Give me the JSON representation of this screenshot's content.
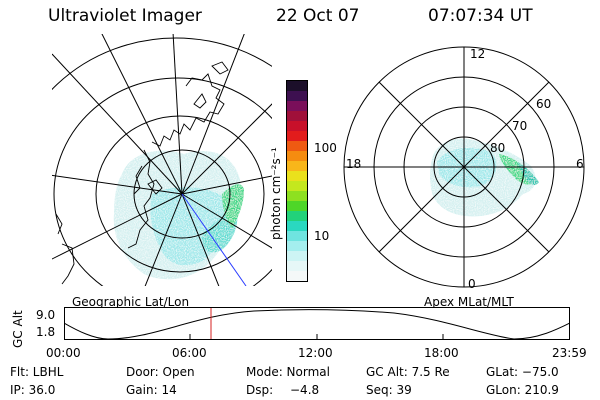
{
  "header": {
    "instrument": "Ultraviolet Imager",
    "date": "22 Oct 07",
    "time": "07:07:34 UT"
  },
  "colorbar": {
    "label": "photon cm⁻²s⁻¹",
    "ticks": [
      "100",
      "10"
    ],
    "colors": [
      "#1c0f2a",
      "#3d1050",
      "#7a0f5a",
      "#a0103a",
      "#c8102a",
      "#e21c1c",
      "#ef5a12",
      "#f58c10",
      "#f8b61a",
      "#eae11c",
      "#c4e81e",
      "#8ee020",
      "#4ed628",
      "#22d27a",
      "#2ad8c0",
      "#6fe4e0",
      "#a4eeee",
      "#cdf4f4",
      "#e6f7f7",
      "#f4f8f8"
    ]
  },
  "polar_plot": {
    "labels": [
      "12",
      "18",
      "6",
      "0",
      "60",
      "70",
      "80"
    ]
  },
  "map_label": "Geographic Lat/Lon",
  "polar_label": "Apex MLat/MLT",
  "altitude_strip": {
    "axis_label": "GC Alt",
    "y_ticks": [
      "9.0",
      "1.8"
    ],
    "x_ticks": [
      "00:00",
      "06:00",
      "12:00",
      "18:00",
      "23:59"
    ],
    "marker_color": "#d42020"
  },
  "footer": {
    "row1": {
      "filter": "Flt: LBHL",
      "door": "Door: Open",
      "mode": "Mode: Normal",
      "gc_alt": "GC Alt: 7.5 Re",
      "glat": "GLat: −75.0"
    },
    "row2": {
      "ip": "IP: 36.0",
      "gain": "Gain: 14",
      "dsp_label": "Dsp:",
      "dsp_value": "−4.8",
      "seq": "Seq: 39",
      "glon": "GLon: 210.9"
    }
  }
}
